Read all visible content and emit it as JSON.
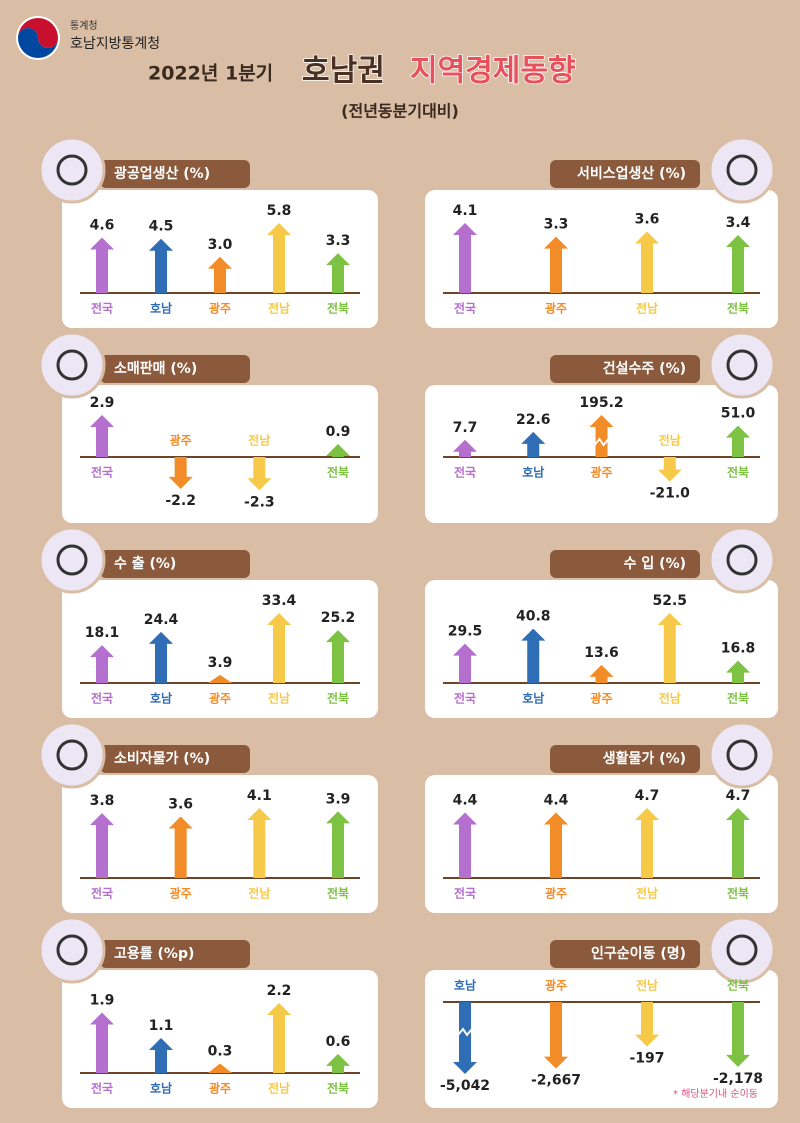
{
  "header": {
    "org_small": "통계청",
    "org": "호남지방통계청"
  },
  "title": {
    "period": "2022년 1분기",
    "region": "호남권",
    "topic": "지역경제동향"
  },
  "subtitle": "(전년동분기대비)",
  "chart_data": [
    {
      "type": "bar",
      "title": "광공업생산 (%)",
      "categories": [
        "전국",
        "호남",
        "광주",
        "전남",
        "전북"
      ],
      "values": [
        4.6,
        4.5,
        3.0,
        5.8,
        3.3
      ],
      "value_labels": [
        "4.6",
        "4.5",
        "3.0",
        "5.8",
        "3.3"
      ],
      "colors": [
        "#b56fcf",
        "#2f6db5",
        "#f28c28",
        "#f7c948",
        "#7dc242"
      ]
    },
    {
      "type": "bar",
      "title": "서비스업생산 (%)",
      "categories": [
        "전국",
        "광주",
        "전남",
        "전북"
      ],
      "values": [
        4.1,
        3.3,
        3.6,
        3.4
      ],
      "value_labels": [
        "4.1",
        "3.3",
        "3.6",
        "3.4"
      ],
      "colors": [
        "#b56fcf",
        "#f28c28",
        "#f7c948",
        "#7dc242"
      ]
    },
    {
      "type": "bar",
      "title": "소매판매 (%)",
      "categories": [
        "전국",
        "광주",
        "전남",
        "전북"
      ],
      "values": [
        2.9,
        -2.2,
        -2.3,
        0.9
      ],
      "value_labels": [
        "2.9",
        "-2.2",
        "-2.3",
        "0.9"
      ],
      "colors": [
        "#b56fcf",
        "#f28c28",
        "#f7c948",
        "#7dc242"
      ]
    },
    {
      "type": "bar",
      "title": "건설수주 (%)",
      "categories": [
        "전국",
        "호남",
        "광주",
        "전남",
        "전북"
      ],
      "values": [
        7.7,
        22.6,
        195.2,
        -21.0,
        51.0
      ],
      "value_labels": [
        "7.7",
        "22.6",
        "195.2",
        "-21.0",
        "51.0"
      ],
      "colors": [
        "#b56fcf",
        "#2f6db5",
        "#f28c28",
        "#f7c948",
        "#7dc242"
      ],
      "axis_break": true
    },
    {
      "type": "bar",
      "title": "수 출 (%)",
      "categories": [
        "전국",
        "호남",
        "광주",
        "전남",
        "전북"
      ],
      "values": [
        18.1,
        24.4,
        3.9,
        33.4,
        25.2
      ],
      "value_labels": [
        "18.1",
        "24.4",
        "3.9",
        "33.4",
        "25.2"
      ],
      "colors": [
        "#b56fcf",
        "#2f6db5",
        "#f28c28",
        "#f7c948",
        "#7dc242"
      ]
    },
    {
      "type": "bar",
      "title": "수   입 (%)",
      "categories": [
        "전국",
        "호남",
        "광주",
        "전남",
        "전북"
      ],
      "values": [
        29.5,
        40.8,
        13.6,
        52.5,
        16.8
      ],
      "value_labels": [
        "29.5",
        "40.8",
        "13.6",
        "52.5",
        "16.8"
      ],
      "colors": [
        "#b56fcf",
        "#2f6db5",
        "#f28c28",
        "#f7c948",
        "#7dc242"
      ]
    },
    {
      "type": "bar",
      "title": "소비자물가 (%)",
      "categories": [
        "전국",
        "광주",
        "전남",
        "전북"
      ],
      "values": [
        3.8,
        3.6,
        4.1,
        3.9
      ],
      "value_labels": [
        "3.8",
        "3.6",
        "4.1",
        "3.9"
      ],
      "colors": [
        "#b56fcf",
        "#f28c28",
        "#f7c948",
        "#7dc242"
      ]
    },
    {
      "type": "bar",
      "title": "생활물가 (%)",
      "categories": [
        "전국",
        "광주",
        "전남",
        "전북"
      ],
      "values": [
        4.4,
        4.4,
        4.7,
        4.7
      ],
      "value_labels": [
        "4.4",
        "4.4",
        "4.7",
        "4.7"
      ],
      "colors": [
        "#b56fcf",
        "#f28c28",
        "#f7c948",
        "#7dc242"
      ]
    },
    {
      "type": "bar",
      "title": "고용률 (%p)",
      "categories": [
        "전국",
        "호남",
        "광주",
        "전남",
        "전북"
      ],
      "values": [
        1.9,
        1.1,
        0.3,
        2.2,
        0.6
      ],
      "value_labels": [
        "1.9",
        "1.1",
        "0.3",
        "2.2",
        "0.6"
      ],
      "colors": [
        "#b56fcf",
        "#2f6db5",
        "#f28c28",
        "#f7c948",
        "#7dc242"
      ]
    },
    {
      "type": "bar",
      "title": "인구순이동 (명)",
      "categories": [
        "호남",
        "광주",
        "전남",
        "전북"
      ],
      "values": [
        -5042,
        -2667,
        -197,
        -2178
      ],
      "value_labels": [
        "-5,042",
        "-2,667",
        "-197",
        "-2,178"
      ],
      "colors": [
        "#2f6db5",
        "#f28c28",
        "#f7c948",
        "#7dc242"
      ],
      "axis_break": true,
      "note": "* 해당분기내 순이동"
    }
  ]
}
